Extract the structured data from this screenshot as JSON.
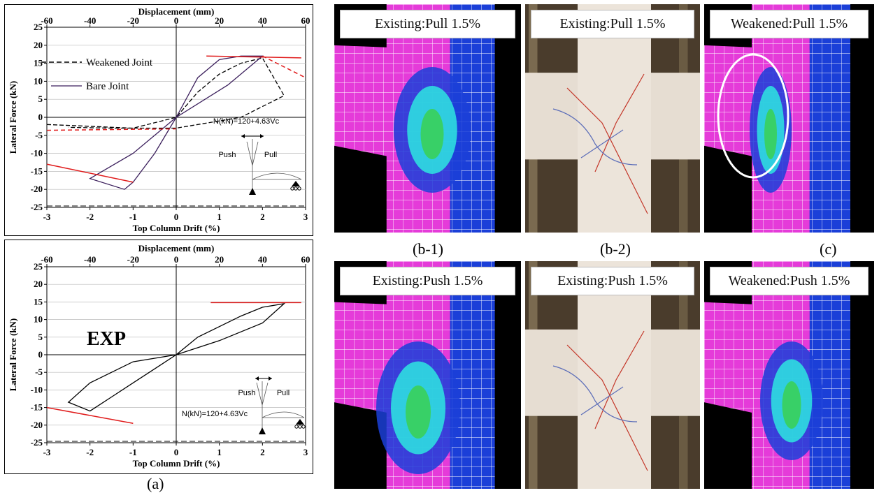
{
  "chart_data": [
    {
      "id": "top",
      "type": "line",
      "top_axis_label": "Displacement (mm)",
      "top_ticks": [
        "-60",
        "-40",
        "-20",
        "0",
        "20",
        "40",
        "60"
      ],
      "xlabel": "Top Column Drift (%)",
      "ylabel": "Lateral Force (kN)",
      "x_ticks": [
        "-3",
        "-2",
        "-1",
        "0",
        "1",
        "2",
        "3"
      ],
      "y_ticks": [
        "25",
        "20",
        "15",
        "10",
        "5",
        "0",
        "-5",
        "-10",
        "-15",
        "-20",
        "-25"
      ],
      "xlim": [
        -3,
        3
      ],
      "ylim": [
        -25,
        25
      ],
      "series": [
        {
          "name": "Weakened Joint",
          "style": "dashed",
          "color": "#000000",
          "points": [
            [
              -3,
              -2
            ],
            [
              -2,
              -2.5
            ],
            [
              -1,
              -3
            ],
            [
              0,
              0
            ],
            [
              0.5,
              7
            ],
            [
              1,
              12
            ],
            [
              1.5,
              15
            ],
            [
              2,
              16.5
            ],
            [
              2.5,
              6
            ],
            [
              1.5,
              0
            ],
            [
              0,
              -3
            ],
            [
              -1.5,
              -3
            ],
            [
              -2.5,
              -2.8
            ]
          ]
        },
        {
          "name": "Bare Joint",
          "style": "solid",
          "color": "#3b1f5c",
          "points": [
            [
              0,
              0
            ],
            [
              0.5,
              11
            ],
            [
              1,
              16
            ],
            [
              1.5,
              17
            ],
            [
              2,
              17
            ],
            [
              1.2,
              9
            ],
            [
              0,
              0
            ],
            [
              -0.5,
              -10
            ],
            [
              -1,
              -18
            ],
            [
              -1.2,
              -20
            ],
            [
              -2,
              -17
            ],
            [
              -1,
              -10
            ],
            [
              0,
              0
            ]
          ]
        }
      ],
      "red_lines": [
        {
          "style": "solid",
          "points": [
            [
              0.7,
              17
            ],
            [
              2.9,
              16.5
            ]
          ]
        },
        {
          "style": "dashed",
          "points": [
            [
              2,
              17
            ],
            [
              3,
              11
            ]
          ]
        },
        {
          "style": "dashed",
          "points": [
            [
              -3,
              -3.6
            ],
            [
              0,
              -3.2
            ]
          ]
        },
        {
          "style": "solid",
          "points": [
            [
              -3,
              -13
            ],
            [
              -1,
              -18
            ]
          ]
        }
      ],
      "annotation": "N(kN)=120+4.63Vc",
      "push_label": "Push",
      "pull_label": "Pull"
    },
    {
      "id": "bottom",
      "type": "line",
      "top_axis_label": "Displacement (mm)",
      "top_ticks": [
        "-60",
        "-40",
        "-20",
        "0",
        "20",
        "40",
        "60"
      ],
      "xlabel": "Top Column Drift (%)",
      "ylabel": "Lateral Force (kN)",
      "x_ticks": [
        "-3",
        "-2",
        "-1",
        "0",
        "1",
        "2",
        "3"
      ],
      "y_ticks": [
        "25",
        "20",
        "15",
        "10",
        "5",
        "0",
        "-5",
        "-10",
        "-15",
        "-20",
        "-25"
      ],
      "xlim": [
        -3,
        3
      ],
      "ylim": [
        -25,
        25
      ],
      "series": [
        {
          "style": "solid",
          "color": "#000000",
          "points": [
            [
              0,
              0
            ],
            [
              0.5,
              5
            ],
            [
              1,
              8
            ],
            [
              1.5,
              11
            ],
            [
              2,
              13.5
            ],
            [
              2.5,
              14.5
            ],
            [
              2,
              9
            ],
            [
              1,
              4
            ],
            [
              0,
              0
            ],
            [
              -0.5,
              -4
            ],
            [
              -1,
              -8
            ],
            [
              -1.5,
              -12
            ],
            [
              -2,
              -16
            ],
            [
              -2.5,
              -13.5
            ],
            [
              -2,
              -8
            ],
            [
              -1,
              -2
            ],
            [
              0,
              0
            ]
          ]
        }
      ],
      "red_lines": [
        {
          "style": "solid",
          "points": [
            [
              0.8,
              14.8
            ],
            [
              2.9,
              14.8
            ]
          ]
        },
        {
          "style": "solid",
          "points": [
            [
              -3,
              -15
            ],
            [
              -1,
              -19.5
            ]
          ]
        }
      ],
      "exp_label": "EXP",
      "annotation": "N(kN)=120+4.63Vc",
      "push_label": "Push",
      "pull_label": "Pull"
    }
  ],
  "captions": {
    "a": "(a)",
    "b1": "(b-1)",
    "b2": "(b-2)",
    "c": "(c)"
  },
  "photos": [
    {
      "id": "p1",
      "label": "Existing:Pull 1.5%",
      "kind": "fem"
    },
    {
      "id": "p2",
      "label": "Existing:Pull 1.5%",
      "kind": "photo"
    },
    {
      "id": "p3",
      "label": "Weakened:Pull 1.5%",
      "kind": "fem"
    },
    {
      "id": "p4",
      "label": "Existing:Push 1.5%",
      "kind": "fem"
    },
    {
      "id": "p5",
      "label": "Existing:Push 1.5%",
      "kind": "photo"
    },
    {
      "id": "p6",
      "label": "Weakened:Push 1.5%",
      "kind": "fem"
    }
  ],
  "colors": {
    "magenta": "#e53bd9",
    "blue": "#1b3fd8",
    "cyan": "#2ee6e0",
    "green": "#3ad05a",
    "red_line": "#e01b1b",
    "crack_red": "#c4382a",
    "crack_blue": "#5a6cb8"
  }
}
